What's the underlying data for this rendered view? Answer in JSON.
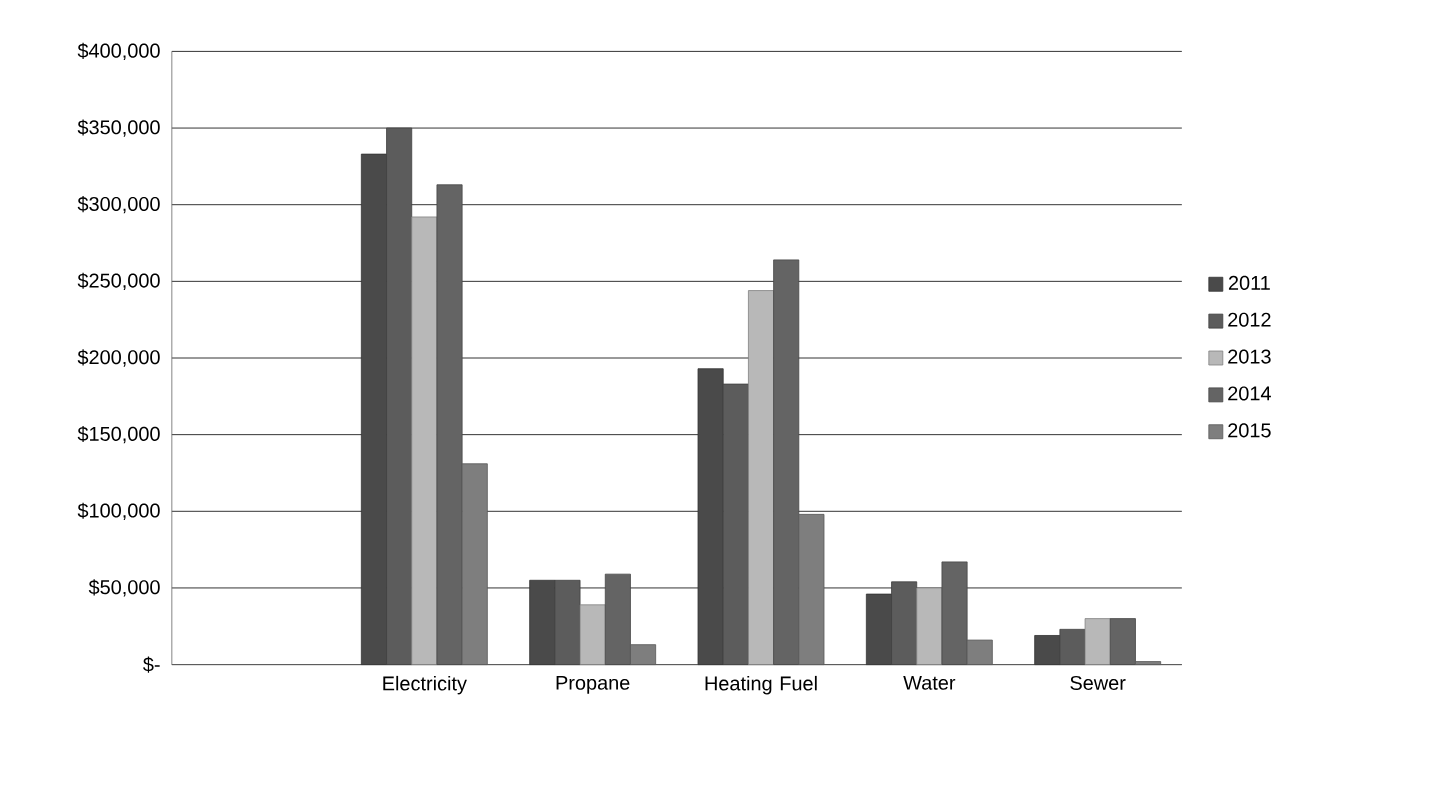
{
  "chart_data": {
    "type": "bar",
    "categories": [
      null,
      "Electricity",
      "Propane",
      "Heating Fuel",
      "Water",
      "Sewer"
    ],
    "series": [
      {
        "name": "2011",
        "color": "#4a4a4a",
        "values": [
          null,
          333000,
          55000,
          193000,
          46000,
          19000
        ]
      },
      {
        "name": "2012",
        "color": "#5c5c5c",
        "values": [
          null,
          350000,
          55000,
          183000,
          54000,
          23000
        ]
      },
      {
        "name": "2013",
        "color": "#b8b8b8",
        "values": [
          null,
          292000,
          39000,
          244000,
          50000,
          30000
        ]
      },
      {
        "name": "2014",
        "color": "#646464",
        "values": [
          null,
          313000,
          59000,
          264000,
          67000,
          30000
        ]
      },
      {
        "name": "2015",
        "color": "#7e7e7e",
        "values": [
          null,
          131000,
          13000,
          98000,
          16000,
          2000
        ]
      }
    ],
    "ylim": [
      0,
      400000
    ],
    "yticks": [
      {
        "value": 0,
        "label": "$-"
      },
      {
        "value": 50000,
        "label": "$50,000"
      },
      {
        "value": 100000,
        "label": "$100,000"
      },
      {
        "value": 150000,
        "label": "$150,000"
      },
      {
        "value": 200000,
        "label": "$200,000"
      },
      {
        "value": 250000,
        "label": "$250,000"
      },
      {
        "value": 300000,
        "label": "$300,000"
      },
      {
        "value": 350000,
        "label": "$350,000"
      },
      {
        "value": 400000,
        "label": "$400,000"
      }
    ],
    "grid": "y",
    "legend": "right"
  }
}
